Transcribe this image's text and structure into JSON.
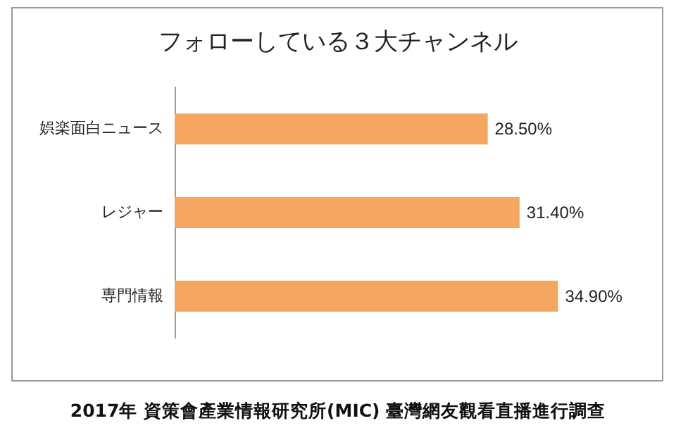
{
  "chart_data": {
    "type": "bar",
    "orientation": "horizontal",
    "title": "フォローしている３大チャンネル",
    "categories": [
      "娯楽面白ニュース",
      "レジャー",
      "専門情報"
    ],
    "values": [
      28.5,
      31.4,
      34.9
    ],
    "value_labels": [
      "28.50%",
      "31.40%",
      "34.90%"
    ],
    "color": "#f5a660",
    "annotations": [
      "2017年 資策會產業情報研究所(MIC) 臺灣網友觀看直播進行調查"
    ]
  }
}
